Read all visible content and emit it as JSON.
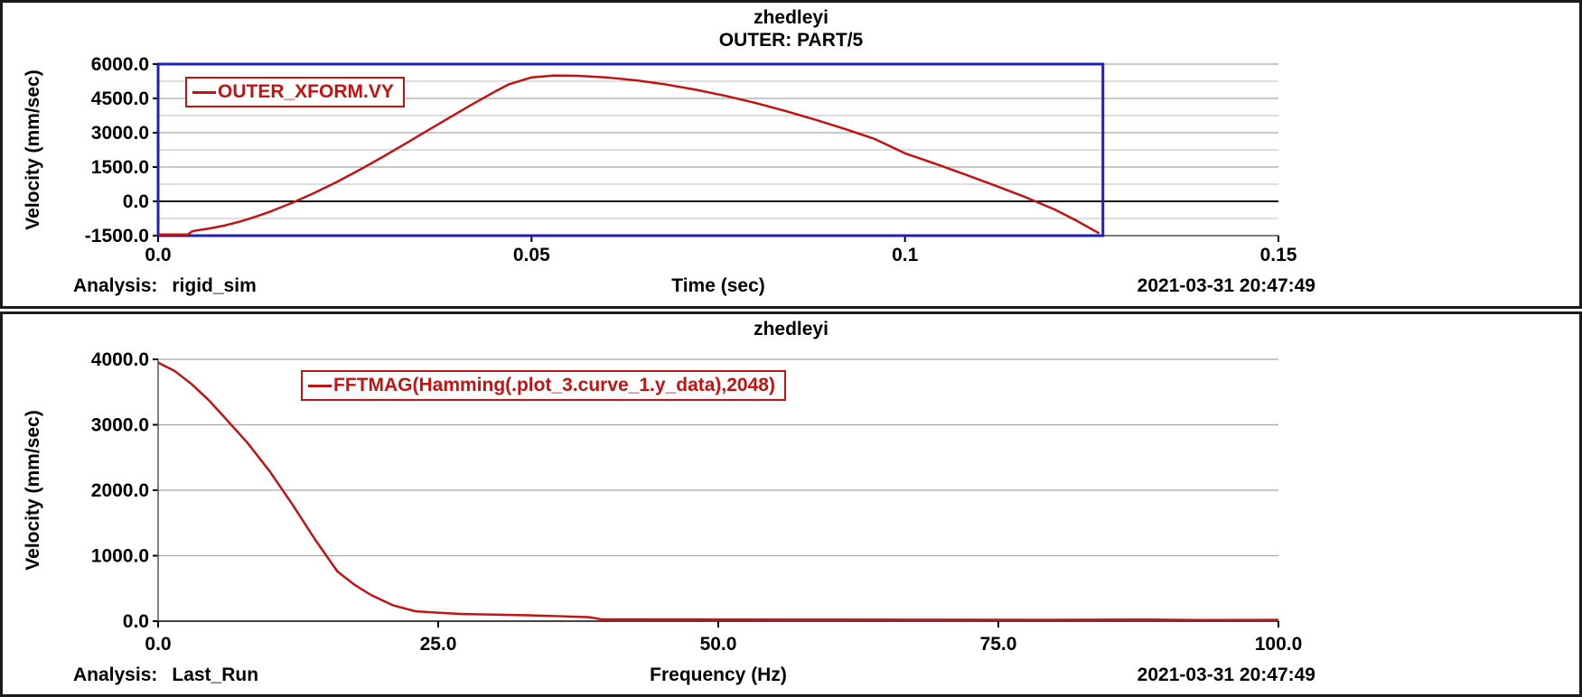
{
  "chart_data": [
    {
      "type": "line",
      "title": "zhedleyi",
      "subtitle": "OUTER: PART/5",
      "xlabel": "Time (sec)",
      "ylabel": "Velocity (mm/sec)",
      "legend": "OUTER_XFORM.VY",
      "footer": {
        "analysis_label": "Analysis:",
        "analysis_name": "rigid_sim",
        "timestamp": "2021-03-31 20:47:49"
      },
      "line_color": "#c41212",
      "xlim": [
        0,
        0.15
      ],
      "ylim": [
        -1500,
        6000
      ],
      "xticks": [
        {
          "v": 0,
          "label": "0.0"
        },
        {
          "v": 0.05,
          "label": "0.05"
        },
        {
          "v": 0.1,
          "label": "0.1"
        },
        {
          "v": 0.15,
          "label": "0.15"
        }
      ],
      "yticks": [
        {
          "v": 6000,
          "label": "6000.0"
        },
        {
          "v": 4500,
          "label": "4500.0"
        },
        {
          "v": 3000,
          "label": "3000.0"
        },
        {
          "v": 1500,
          "label": "1500.0"
        },
        {
          "v": 0,
          "label": "0.0"
        },
        {
          "v": -1500,
          "label": "-1500.0"
        }
      ],
      "y_minor": [
        -750,
        750,
        2250,
        3750,
        5250
      ],
      "zero_line": 0,
      "selection_box": {
        "x0": 0,
        "x1": 0.1265,
        "y0": -1500,
        "y1": 6000,
        "color": "#1f1fbe"
      },
      "x": [
        0,
        0.004,
        0.0045,
        0.005,
        0.007,
        0.009,
        0.011,
        0.013,
        0.015,
        0.018,
        0.021,
        0.024,
        0.027,
        0.03,
        0.033,
        0.036,
        0.039,
        0.042,
        0.045,
        0.047,
        0.05,
        0.053,
        0.056,
        0.06,
        0.064,
        0.068,
        0.072,
        0.076,
        0.08,
        0.084,
        0.088,
        0.092,
        0.096,
        0.1,
        0.104,
        0.108,
        0.112,
        0.116,
        0.12,
        0.123,
        0.126
      ],
      "y": [
        -1450,
        -1450,
        -1320,
        -1280,
        -1180,
        -1050,
        -880,
        -680,
        -450,
        -60,
        380,
        860,
        1380,
        1930,
        2500,
        3080,
        3660,
        4230,
        4780,
        5120,
        5420,
        5500,
        5490,
        5420,
        5290,
        5110,
        4880,
        4610,
        4300,
        3950,
        3570,
        3160,
        2720,
        2100,
        1650,
        1180,
        700,
        200,
        -350,
        -850,
        -1400
      ]
    },
    {
      "type": "line",
      "title": "zhedleyi",
      "subtitle": "",
      "xlabel": "Frequency (Hz)",
      "ylabel": "Velocity (mm/sec)",
      "legend": "FFTMAG(Hamming(.plot_3.curve_1.y_data),2048)",
      "footer": {
        "analysis_label": "Analysis:",
        "analysis_name": "Last_Run",
        "timestamp": "2021-03-31 20:47:49"
      },
      "line_color": "#c41212",
      "xlim": [
        0,
        100
      ],
      "ylim": [
        0,
        4000
      ],
      "xticks": [
        {
          "v": 0,
          "label": "0.0"
        },
        {
          "v": 25,
          "label": "25.0"
        },
        {
          "v": 50,
          "label": "50.0"
        },
        {
          "v": 75,
          "label": "75.0"
        },
        {
          "v": 100,
          "label": "100.0"
        }
      ],
      "yticks": [
        {
          "v": 4000,
          "label": "4000.0"
        },
        {
          "v": 3000,
          "label": "3000.0"
        },
        {
          "v": 2000,
          "label": "2000.0"
        },
        {
          "v": 1000,
          "label": "1000.0"
        },
        {
          "v": 0,
          "label": "0.0"
        }
      ],
      "y_minor": [],
      "zero_line": 0,
      "x": [
        0,
        1.5,
        3,
        4.5,
        6,
        8,
        10,
        12,
        14,
        16,
        17.5,
        19,
        21,
        23,
        25,
        27,
        30,
        33,
        36,
        38.5,
        39.5,
        45,
        50,
        60,
        70,
        80,
        87,
        93,
        100
      ],
      "y": [
        3950,
        3820,
        3620,
        3380,
        3100,
        2720,
        2280,
        1780,
        1250,
        760,
        560,
        400,
        240,
        150,
        130,
        110,
        100,
        90,
        75,
        60,
        30,
        28,
        26,
        24,
        22,
        20,
        25,
        18,
        20
      ]
    }
  ]
}
